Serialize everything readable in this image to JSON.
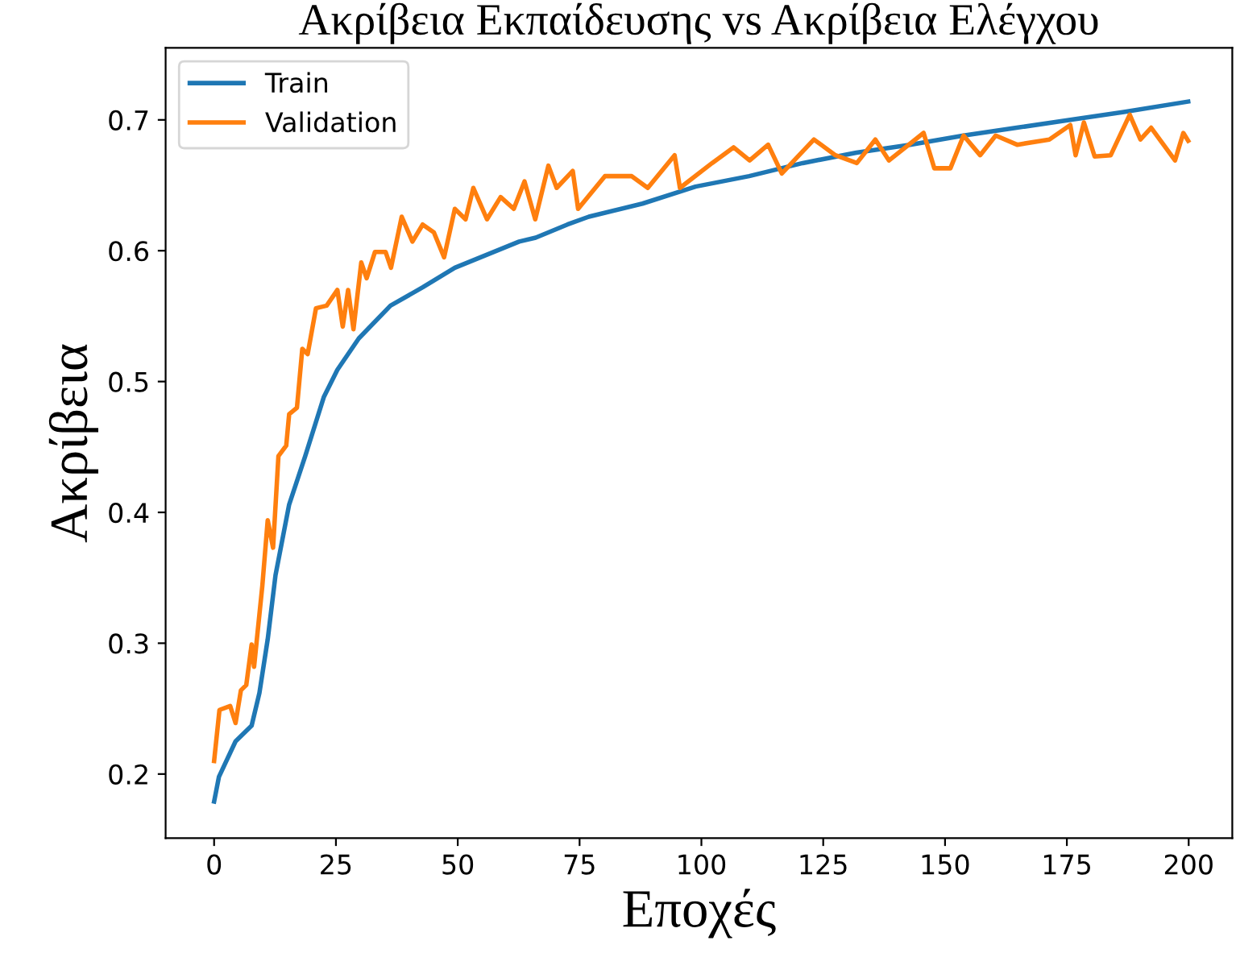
{
  "chart_data": {
    "type": "line",
    "title": "Ακρίβεια Εκπαίδευσης vs Ακρίβεια Ελέγχου",
    "xlabel": "Εποχές",
    "ylabel": "Ακρίβεια",
    "xlim": [
      -9.95,
      208.95
    ],
    "ylim": [
      0.151,
      0.755
    ],
    "xticks": [
      0,
      25,
      50,
      75,
      100,
      125,
      150,
      175,
      200
    ],
    "yticks": [
      0.2,
      0.3,
      0.4,
      0.5,
      0.6,
      0.7
    ],
    "grid": false,
    "legend": "top left",
    "line_style": "solid",
    "marker": "none",
    "series": [
      {
        "name": "Train",
        "color": "#1f77b4",
        "x": [
          0,
          1,
          4.4,
          7.7,
          9.3,
          11,
          12.6,
          15.4,
          18.7,
          22.5,
          25.3,
          29.7,
          36.2,
          42.8,
          49.4,
          56,
          62.6,
          66,
          72.5,
          76.9,
          87.9,
          98.8,
          109.8,
          120.8,
          131.8,
          142.8,
          153.8,
          164.7,
          175.7,
          186.7,
          199.9
        ],
        "values": [
          0.179,
          0.198,
          0.225,
          0.237,
          0.262,
          0.303,
          0.352,
          0.406,
          0.443,
          0.488,
          0.509,
          0.533,
          0.558,
          0.572,
          0.587,
          0.597,
          0.607,
          0.61,
          0.62,
          0.626,
          0.636,
          0.649,
          0.657,
          0.667,
          0.675,
          0.681,
          0.688,
          0.694,
          0.7,
          0.706,
          0.714
        ]
      },
      {
        "name": "Validation",
        "color": "#ff7f0e",
        "x": [
          0,
          1.1,
          3.3,
          4.4,
          5.5,
          6.6,
          7.7,
          8.2,
          9.9,
          11,
          12.1,
          13.2,
          14.8,
          15.4,
          17,
          18.1,
          19.2,
          20.9,
          23.1,
          25.3,
          26.4,
          27.5,
          28.6,
          30.2,
          31.3,
          33,
          35.2,
          36.3,
          38.5,
          40.7,
          42.8,
          45.1,
          47.2,
          49.4,
          51.6,
          53.2,
          56,
          58.8,
          61.5,
          63.7,
          65.9,
          68.6,
          70.3,
          73.6,
          74.7,
          80.2,
          85.7,
          89,
          94.5,
          95.6,
          102.2,
          106.6,
          109.9,
          113.7,
          116.5,
          123.1,
          127.5,
          131.9,
          135.7,
          138.5,
          145.6,
          147.8,
          151.1,
          153.8,
          157.2,
          160.4,
          164.8,
          171.4,
          175.7,
          176.8,
          178.5,
          180.7,
          184,
          187.9,
          190.1,
          192.3,
          197.2,
          198.9,
          199.9
        ],
        "values": [
          0.21,
          0.249,
          0.252,
          0.239,
          0.264,
          0.268,
          0.299,
          0.282,
          0.344,
          0.394,
          0.373,
          0.443,
          0.451,
          0.475,
          0.48,
          0.525,
          0.521,
          0.556,
          0.558,
          0.57,
          0.542,
          0.57,
          0.54,
          0.591,
          0.579,
          0.599,
          0.599,
          0.587,
          0.626,
          0.607,
          0.62,
          0.614,
          0.595,
          0.632,
          0.624,
          0.648,
          0.624,
          0.641,
          0.632,
          0.653,
          0.624,
          0.665,
          0.648,
          0.661,
          0.632,
          0.657,
          0.657,
          0.648,
          0.673,
          0.648,
          0.667,
          0.679,
          0.669,
          0.681,
          0.659,
          0.685,
          0.673,
          0.667,
          0.685,
          0.669,
          0.69,
          0.663,
          0.663,
          0.688,
          0.673,
          0.688,
          0.681,
          0.685,
          0.696,
          0.673,
          0.698,
          0.672,
          0.673,
          0.704,
          0.685,
          0.694,
          0.669,
          0.69,
          0.684
        ]
      }
    ]
  }
}
